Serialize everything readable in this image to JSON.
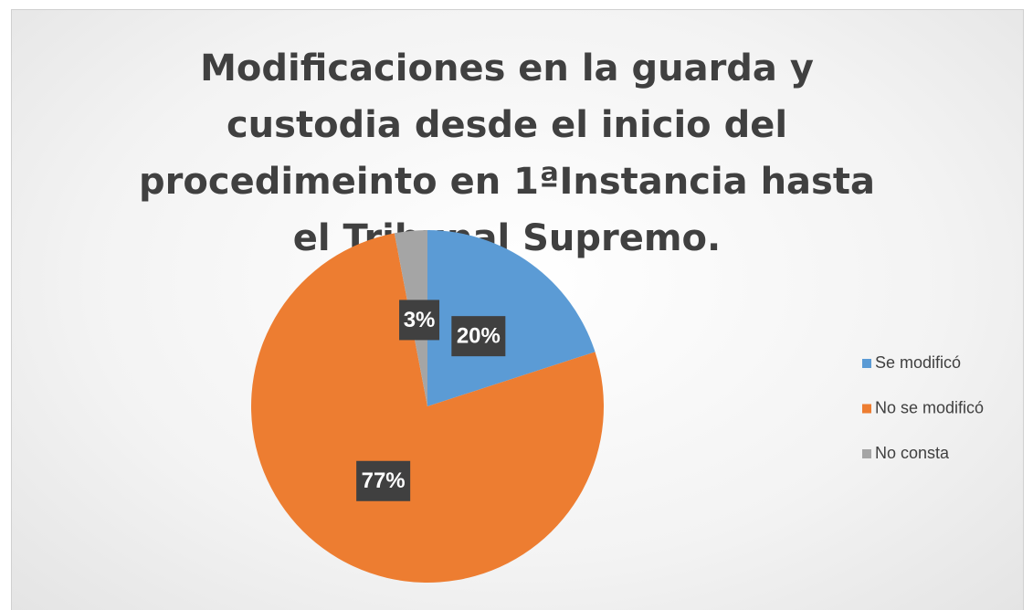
{
  "chart_data": {
    "type": "pie",
    "title": "Modificaciones en la guarda y custodia desde el inicio del procedimeinto en 1ªInstancia hasta el Tribunal Supremo.",
    "categories": [
      "Se modificó",
      "No se modificó",
      "No consta"
    ],
    "values": [
      20,
      77,
      3
    ],
    "value_labels": [
      "20%",
      "77%",
      "3%"
    ],
    "colors": [
      "#5b9bd5",
      "#ed7d31",
      "#a5a5a5"
    ],
    "legend": "right"
  }
}
